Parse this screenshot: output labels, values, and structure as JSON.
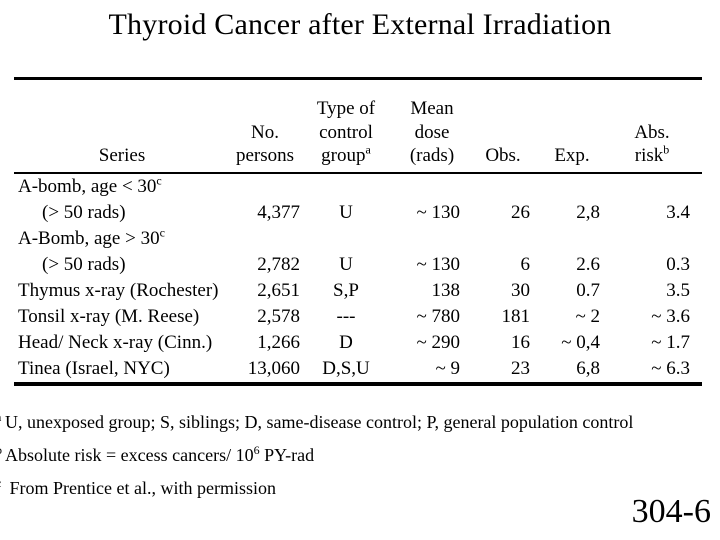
{
  "slide": {
    "title": "Thyroid Cancer after External Irradiation",
    "page_number": "304-6"
  },
  "table": {
    "headers": {
      "series": "Series",
      "persons": "No.\npersons",
      "control": {
        "text": "Type of\ncontrol\ngroup",
        "sup": "a"
      },
      "dose": "Mean\ndose\n(rads)",
      "obs": "Obs.",
      "exp": "Exp.",
      "risk": {
        "text": "Abs.\nrisk",
        "sup": "b"
      }
    },
    "rows": [
      {
        "series": "A-bomb, age < 30",
        "series_sup": "c",
        "indent": false,
        "persons": "",
        "control": "",
        "dose": "",
        "obs": "",
        "exp": "",
        "risk": ""
      },
      {
        "series": "(> 50 rads)",
        "series_sup": "",
        "indent": true,
        "persons": "4,377",
        "control": "U",
        "dose": "~ 130",
        "obs": "26",
        "exp": "2,8",
        "risk": "3.4"
      },
      {
        "series": "A-Bomb, age > 30",
        "series_sup": "c",
        "indent": false,
        "persons": "",
        "control": "",
        "dose": "",
        "obs": "",
        "exp": "",
        "risk": ""
      },
      {
        "series": "(> 50 rads)",
        "series_sup": "",
        "indent": true,
        "persons": "2,782",
        "control": "U",
        "dose": "~ 130",
        "obs": "6",
        "exp": "2.6",
        "risk": "0.3"
      },
      {
        "series": "Thymus x-ray (Rochester)",
        "series_sup": "",
        "indent": false,
        "persons": "2,651",
        "control": "S,P",
        "dose": "138",
        "obs": "30",
        "exp": "0.7",
        "risk": "3.5"
      },
      {
        "series": "Tonsil x-ray (M. Reese)",
        "series_sup": "",
        "indent": false,
        "persons": "2,578",
        "control": "---",
        "dose": "~ 780",
        "obs": "181",
        "exp": "~ 2",
        "risk": "~ 3.6"
      },
      {
        "series": "Head/ Neck x-ray (Cinn.)",
        "series_sup": "",
        "indent": false,
        "persons": "1,266",
        "control": "D",
        "dose": "~ 290",
        "obs": "16",
        "exp": "~ 0,4",
        "risk": "~ 1.7"
      },
      {
        "series": "Tinea (Israel, NYC)",
        "series_sup": "",
        "indent": false,
        "persons": "13,060",
        "control": "D,S,U",
        "dose": "~ 9",
        "obs": "23",
        "exp": "6,8",
        "risk": "~ 6.3"
      }
    ]
  },
  "footnotes": [
    {
      "marker": "a",
      "text_pre": "U, unexposed group; S, siblings; D, same-disease control; P, general population control",
      "sup": "",
      "text_post": ""
    },
    {
      "marker": "b",
      "text_pre": "Absolute risk = excess cancers/ 10",
      "sup": "6",
      "text_post": " PY-rad"
    },
    {
      "marker": "c",
      "text_pre": " From Prentice et al., with permission",
      "sup": "",
      "text_post": ""
    }
  ]
}
